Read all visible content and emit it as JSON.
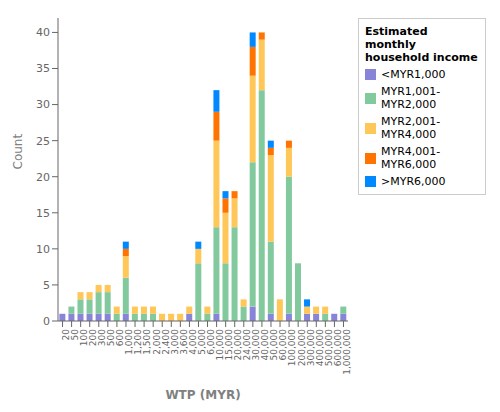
{
  "chart_data": {
    "type": "bar",
    "stacked": true,
    "xlabel": "WTP (MYR)",
    "ylabel": "Count",
    "legend_title": "Estimated monthly\nhousehold income",
    "legend": "upper right",
    "grid": false,
    "categories": [
      "20",
      "50",
      "100",
      "200",
      "300",
      "500",
      "600",
      "1,000",
      "1,200",
      "1,500",
      "2,000",
      "2,400",
      "3,000",
      "3,600",
      "4,000",
      "5,000",
      "6,000",
      "10,000",
      "15,000",
      "20,000",
      "24,000",
      "30,000",
      "40,000",
      "50,000",
      "60,000",
      "100,000",
      "200,000",
      "300,000",
      "400,000",
      "500,000",
      "600,000",
      "1,000,000"
    ],
    "series": [
      {
        "name": "<MYR1,000",
        "color": "#8884d8",
        "values": [
          1,
          1,
          1,
          1,
          1,
          1,
          0,
          1,
          0,
          0,
          0,
          0,
          0,
          0,
          1,
          0,
          0,
          1,
          0,
          0,
          0,
          2,
          0,
          1,
          0,
          1,
          0,
          1,
          1,
          0,
          1,
          1
        ]
      },
      {
        "name": "MYR1,001-MYR2,000",
        "color": "#82ca9d",
        "values": [
          0,
          1,
          2,
          2,
          3,
          3,
          1,
          5,
          1,
          1,
          1,
          0,
          0,
          0,
          0,
          8,
          1,
          12,
          8,
          13,
          2,
          20,
          32,
          10,
          0,
          19,
          8,
          0,
          0,
          1,
          0,
          1
        ]
      },
      {
        "name": "MYR2,001-MYR4,000",
        "color": "#ffc658",
        "values": [
          0,
          0,
          1,
          1,
          1,
          1,
          1,
          3,
          1,
          1,
          1,
          1,
          1,
          1,
          1,
          2,
          1,
          12,
          7,
          4,
          1,
          12,
          7,
          12,
          3,
          4,
          0,
          1,
          1,
          1,
          0,
          0
        ]
      },
      {
        "name": "MYR4,001-MYR6,000",
        "color": "#ff7300",
        "values": [
          0,
          0,
          0,
          0,
          0,
          0,
          0,
          1,
          0,
          0,
          0,
          0,
          0,
          0,
          0,
          0,
          0,
          4,
          2,
          1,
          0,
          4,
          1,
          1,
          0,
          1,
          0,
          0,
          0,
          0,
          0,
          0
        ]
      },
      {
        "name": ">MYR6,000",
        "color": "#0088fe",
        "values": [
          0,
          0,
          0,
          0,
          0,
          0,
          0,
          1,
          0,
          0,
          0,
          0,
          0,
          0,
          0,
          1,
          0,
          3,
          1,
          0,
          0,
          2,
          0,
          1,
          0,
          0,
          0,
          1,
          0,
          0,
          0,
          0
        ]
      }
    ],
    "ylim": [
      0,
      42
    ],
    "yticks": [
      0,
      5,
      10,
      15,
      20,
      25,
      30,
      35,
      40
    ]
  }
}
